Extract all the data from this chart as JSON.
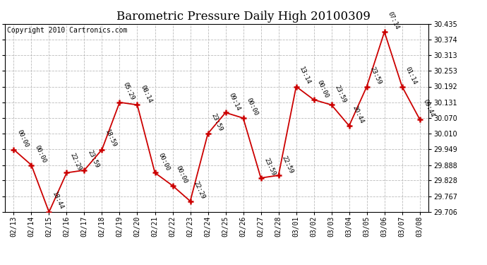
{
  "title": "Barometric Pressure Daily High 20100309",
  "copyright": "Copyright 2010 Cartronics.com",
  "x_labels": [
    "02/13",
    "02/14",
    "02/15",
    "02/16",
    "02/17",
    "02/18",
    "02/19",
    "02/20",
    "02/21",
    "02/22",
    "02/23",
    "02/24",
    "02/25",
    "02/26",
    "02/27",
    "02/28",
    "03/01",
    "03/02",
    "03/03",
    "03/04",
    "03/05",
    "03/06",
    "03/07",
    "03/08"
  ],
  "y_values": [
    29.948,
    29.888,
    29.706,
    29.858,
    29.868,
    29.948,
    30.131,
    30.121,
    29.858,
    29.808,
    29.748,
    30.01,
    30.091,
    30.07,
    29.838,
    29.848,
    30.192,
    30.141,
    30.121,
    30.04,
    30.192,
    30.404,
    30.192,
    30.065
  ],
  "time_labels": [
    "00:00",
    "00:00",
    "18:44",
    "22:29",
    "23:59",
    "18:59",
    "05:29",
    "08:14",
    "00:00",
    "00:00",
    "22:29",
    "23:59",
    "09:14",
    "00:00",
    "23:59",
    "22:59",
    "13:14",
    "00:00",
    "23:59",
    "20:44",
    "23:59",
    "07:14",
    "01:14",
    "09:44"
  ],
  "ylim_min": 29.706,
  "ylim_max": 30.435,
  "yticks": [
    29.706,
    29.767,
    29.828,
    29.888,
    29.949,
    30.01,
    30.07,
    30.131,
    30.192,
    30.253,
    30.313,
    30.374,
    30.435
  ],
  "line_color": "#cc0000",
  "marker_color": "#cc0000",
  "bg_color": "#ffffff",
  "grid_color": "#bbbbbb",
  "title_fontsize": 12,
  "copyright_fontsize": 7,
  "annotation_fontsize": 6.5,
  "tick_fontsize": 7
}
